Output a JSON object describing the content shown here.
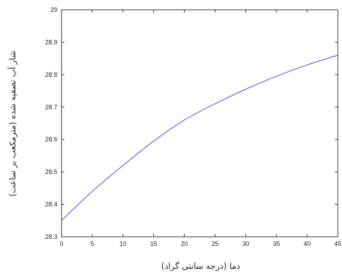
{
  "chart_data": {
    "type": "line",
    "title": "",
    "xlabel": "دما (درجه سانتی گراد)",
    "ylabel": "شار آب تصفیه شده (مترمکعب بر ساعت)",
    "xlim": [
      0,
      45
    ],
    "ylim": [
      28.3,
      29
    ],
    "x_ticks": [
      0,
      5,
      10,
      15,
      20,
      25,
      30,
      35,
      40,
      45
    ],
    "y_ticks": [
      "28.3",
      "28.4",
      "28.5",
      "28.6",
      "28.7",
      "28.8",
      "28.9",
      "29"
    ],
    "grid": false,
    "series": [
      {
        "color": "#4b4bd6",
        "x": [
          0,
          5,
          10,
          15,
          20,
          25,
          30,
          35,
          40,
          45
        ],
        "y": [
          28.35,
          28.44,
          28.52,
          28.595,
          28.66,
          28.71,
          28.755,
          28.795,
          28.83,
          28.86
        ]
      }
    ]
  }
}
